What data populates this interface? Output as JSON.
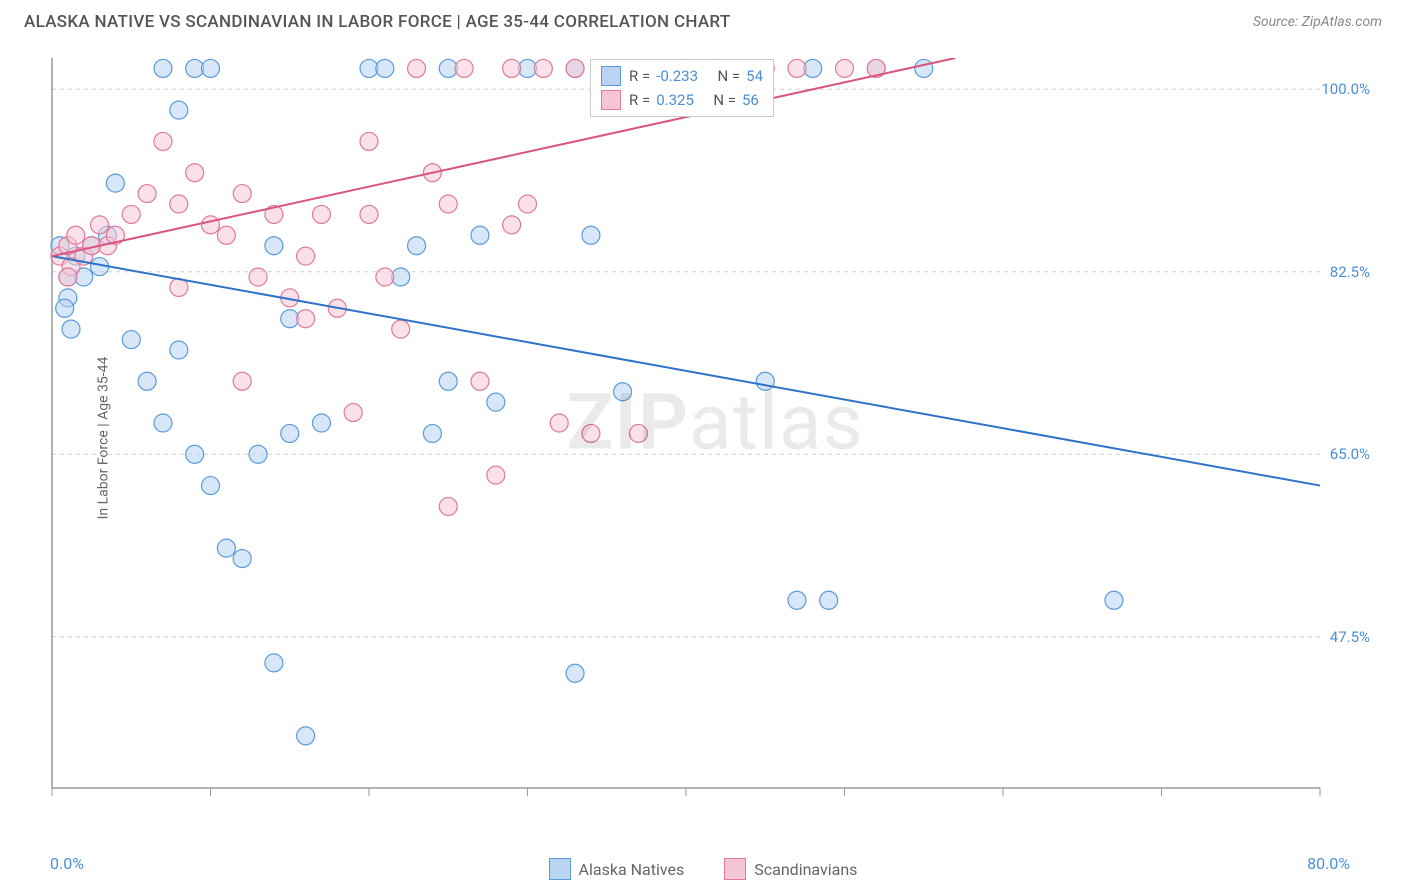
{
  "header": {
    "title": "ALASKA NATIVE VS SCANDINAVIAN IN LABOR FORCE | AGE 35-44 CORRELATION CHART",
    "source_prefix": "Source: ",
    "source_name": "ZipAtlas.com"
  },
  "chart": {
    "type": "scatter",
    "y_axis_label": "In Labor Force | Age 35-44",
    "xlim": [
      0,
      80
    ],
    "ylim": [
      33,
      103
    ],
    "x_ticks": [
      0,
      10,
      20,
      30,
      40,
      50,
      60,
      70,
      80
    ],
    "x_tick_labels": {
      "left": "0.0%",
      "right": "80.0%"
    },
    "y_ticks": [
      {
        "value": 47.5,
        "label": "47.5%"
      },
      {
        "value": 65.0,
        "label": "65.0%"
      },
      {
        "value": 82.5,
        "label": "82.5%"
      },
      {
        "value": 100.0,
        "label": "100.0%"
      }
    ],
    "grid_color": "#d0d0d0",
    "axis_color": "#999999",
    "background_color": "#ffffff",
    "marker_radius": 9,
    "marker_stroke_width": 1.2,
    "trend_line_width": 2,
    "series": [
      {
        "name": "Alaska Natives",
        "fill_color": "#b8d4f0",
        "stroke_color": "#5a9bdc",
        "fill_opacity": 0.55,
        "trend_color": "#2d73c9",
        "R": "-0.233",
        "N": "54",
        "trend_start": {
          "x": 0,
          "y": 84
        },
        "trend_end": {
          "x": 80,
          "y": 62
        },
        "points": [
          {
            "x": 0.5,
            "y": 85
          },
          {
            "x": 1,
            "y": 82
          },
          {
            "x": 1.5,
            "y": 84
          },
          {
            "x": 1,
            "y": 80
          },
          {
            "x": 2,
            "y": 82
          },
          {
            "x": 2.5,
            "y": 85
          },
          {
            "x": 3,
            "y": 83
          },
          {
            "x": 3.5,
            "y": 86
          },
          {
            "x": 0.8,
            "y": 79
          },
          {
            "x": 1.2,
            "y": 77
          },
          {
            "x": 7,
            "y": 102
          },
          {
            "x": 8,
            "y": 98
          },
          {
            "x": 9,
            "y": 102
          },
          {
            "x": 10,
            "y": 102
          },
          {
            "x": 4,
            "y": 91
          },
          {
            "x": 5,
            "y": 76
          },
          {
            "x": 6,
            "y": 72
          },
          {
            "x": 7,
            "y": 68
          },
          {
            "x": 8,
            "y": 75
          },
          {
            "x": 9,
            "y": 65
          },
          {
            "x": 10,
            "y": 62
          },
          {
            "x": 11,
            "y": 56
          },
          {
            "x": 12,
            "y": 55
          },
          {
            "x": 13,
            "y": 65
          },
          {
            "x": 14,
            "y": 45
          },
          {
            "x": 15,
            "y": 67
          },
          {
            "x": 14,
            "y": 85
          },
          {
            "x": 15,
            "y": 78
          },
          {
            "x": 16,
            "y": 38
          },
          {
            "x": 17,
            "y": 68
          },
          {
            "x": 20,
            "y": 102
          },
          {
            "x": 21,
            "y": 102
          },
          {
            "x": 22,
            "y": 82
          },
          {
            "x": 23,
            "y": 85
          },
          {
            "x": 24,
            "y": 67
          },
          {
            "x": 25,
            "y": 72
          },
          {
            "x": 25,
            "y": 102
          },
          {
            "x": 27,
            "y": 86
          },
          {
            "x": 28,
            "y": 70
          },
          {
            "x": 30,
            "y": 102
          },
          {
            "x": 33,
            "y": 44
          },
          {
            "x": 34,
            "y": 86
          },
          {
            "x": 36,
            "y": 71
          },
          {
            "x": 37,
            "y": 102
          },
          {
            "x": 40,
            "y": 102
          },
          {
            "x": 42,
            "y": 102
          },
          {
            "x": 45,
            "y": 72
          },
          {
            "x": 47,
            "y": 51
          },
          {
            "x": 48,
            "y": 102
          },
          {
            "x": 49,
            "y": 51
          },
          {
            "x": 52,
            "y": 102
          },
          {
            "x": 67,
            "y": 51
          },
          {
            "x": 55,
            "y": 102
          },
          {
            "x": 33,
            "y": 102
          }
        ]
      },
      {
        "name": "Scandinavians",
        "fill_color": "#f5c6d6",
        "stroke_color": "#e07a9a",
        "fill_opacity": 0.55,
        "trend_color": "#d9547e",
        "R": "0.325",
        "N": "56",
        "trend_start": {
          "x": 0,
          "y": 84
        },
        "trend_end": {
          "x": 57,
          "y": 103
        },
        "points": [
          {
            "x": 0.5,
            "y": 84
          },
          {
            "x": 1,
            "y": 85
          },
          {
            "x": 1.2,
            "y": 83
          },
          {
            "x": 1.5,
            "y": 86
          },
          {
            "x": 2,
            "y": 84
          },
          {
            "x": 2.5,
            "y": 85
          },
          {
            "x": 3,
            "y": 87
          },
          {
            "x": 3.5,
            "y": 85
          },
          {
            "x": 4,
            "y": 86
          },
          {
            "x": 1,
            "y": 82
          },
          {
            "x": 5,
            "y": 88
          },
          {
            "x": 6,
            "y": 90
          },
          {
            "x": 7,
            "y": 95
          },
          {
            "x": 8,
            "y": 89
          },
          {
            "x": 9,
            "y": 92
          },
          {
            "x": 10,
            "y": 87
          },
          {
            "x": 11,
            "y": 86
          },
          {
            "x": 12,
            "y": 90
          },
          {
            "x": 13,
            "y": 82
          },
          {
            "x": 14,
            "y": 88
          },
          {
            "x": 15,
            "y": 80
          },
          {
            "x": 16,
            "y": 84
          },
          {
            "x": 17,
            "y": 88
          },
          {
            "x": 18,
            "y": 79
          },
          {
            "x": 19,
            "y": 69
          },
          {
            "x": 20,
            "y": 88
          },
          {
            "x": 21,
            "y": 82
          },
          {
            "x": 22,
            "y": 77
          },
          {
            "x": 23,
            "y": 102
          },
          {
            "x": 24,
            "y": 92
          },
          {
            "x": 25,
            "y": 89
          },
          {
            "x": 26,
            "y": 102
          },
          {
            "x": 27,
            "y": 72
          },
          {
            "x": 28,
            "y": 63
          },
          {
            "x": 25,
            "y": 60
          },
          {
            "x": 29,
            "y": 102
          },
          {
            "x": 30,
            "y": 89
          },
          {
            "x": 31,
            "y": 102
          },
          {
            "x": 32,
            "y": 68
          },
          {
            "x": 33,
            "y": 102
          },
          {
            "x": 34,
            "y": 67
          },
          {
            "x": 35,
            "y": 102
          },
          {
            "x": 36,
            "y": 102
          },
          {
            "x": 37,
            "y": 67
          },
          {
            "x": 38,
            "y": 102
          },
          {
            "x": 40,
            "y": 102
          },
          {
            "x": 42,
            "y": 102
          },
          {
            "x": 45,
            "y": 102
          },
          {
            "x": 47,
            "y": 102
          },
          {
            "x": 50,
            "y": 102
          },
          {
            "x": 52,
            "y": 102
          },
          {
            "x": 20,
            "y": 95
          },
          {
            "x": 8,
            "y": 81
          },
          {
            "x": 12,
            "y": 72
          },
          {
            "x": 16,
            "y": 78
          },
          {
            "x": 29,
            "y": 87
          }
        ]
      }
    ],
    "stats_legend": {
      "R_label": "R =",
      "N_label": "N ="
    },
    "watermark": {
      "bold": "ZIP",
      "rest": "atlas"
    }
  },
  "bottom_legend": [
    {
      "label": "Alaska Natives",
      "fill": "#b8d4f0",
      "stroke": "#5a9bdc"
    },
    {
      "label": "Scandinavians",
      "fill": "#f5c6d6",
      "stroke": "#e07a9a"
    }
  ]
}
